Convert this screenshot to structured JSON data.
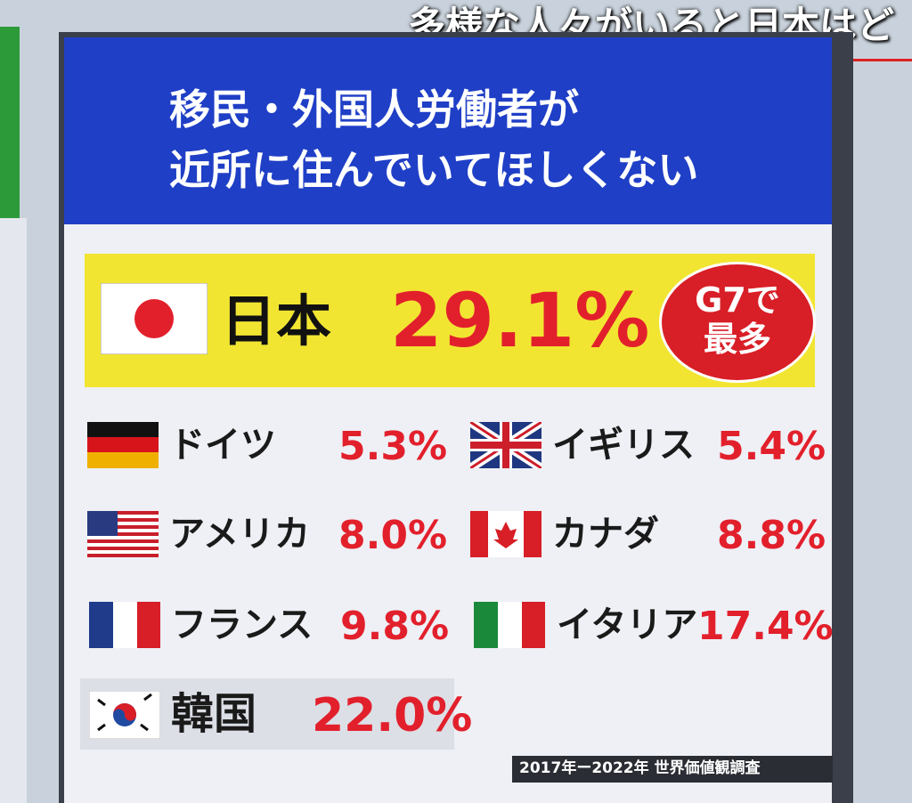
{
  "caption": "多様な人々がいると日本はど",
  "header": {
    "lines": [
      "移民・外国人労働者が",
      "近所に住んでいてほしくない"
    ]
  },
  "highlight": {
    "country": "日本",
    "value": "29.1%",
    "badge": [
      "G7で",
      "最多"
    ]
  },
  "countries": [
    {
      "name": "ドイツ",
      "value": "5.3%"
    },
    {
      "name": "イギリス",
      "value": "5.4%"
    },
    {
      "name": "アメリカ",
      "value": "8.0%"
    },
    {
      "name": "カナダ",
      "value": "8.8%"
    },
    {
      "name": "フランス",
      "value": "9.8%"
    },
    {
      "name": "イタリア",
      "value": "17.4%"
    },
    {
      "name": "韓国",
      "value": "22.0%"
    }
  ],
  "source": "2017年ー2022年 世界価値観調査"
}
